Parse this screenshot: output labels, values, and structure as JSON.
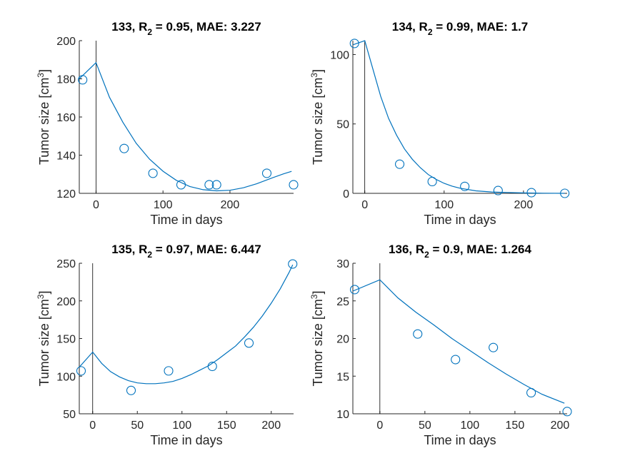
{
  "chart_data": [
    {
      "type": "scatter",
      "title_id": "133",
      "r2": "0.95",
      "mae": "3.227",
      "xlabel": "Time in days",
      "ylabel": "Tumor size [cm",
      "ylabel_sup": "3",
      "ylabel_end": "]",
      "xlim": [
        -25,
        295
      ],
      "ylim": [
        120,
        200
      ],
      "xticks": [
        0,
        100,
        200
      ],
      "yticks": [
        120,
        140,
        160,
        180,
        200
      ],
      "points": [
        [
          -20,
          179.5
        ],
        [
          42,
          143.5
        ],
        [
          85,
          130.5
        ],
        [
          127,
          124.5
        ],
        [
          169,
          124.5
        ],
        [
          180,
          124.5
        ],
        [
          255,
          130.5
        ],
        [
          295,
          124.5
        ]
      ],
      "fit": [
        [
          -25,
          180.0
        ],
        [
          0,
          188.5
        ],
        [
          20,
          170.4
        ],
        [
          40,
          157.3
        ],
        [
          60,
          146.2
        ],
        [
          80,
          137.9
        ],
        [
          100,
          131.6
        ],
        [
          120,
          126.8
        ],
        [
          140,
          123.6
        ],
        [
          160,
          121.9
        ],
        [
          180,
          121.3
        ],
        [
          200,
          121.6
        ],
        [
          220,
          122.9
        ],
        [
          240,
          125.0
        ],
        [
          260,
          127.7
        ],
        [
          280,
          130.2
        ],
        [
          292,
          131.5
        ]
      ]
    },
    {
      "type": "scatter",
      "title_id": "134",
      "r2": "0.99",
      "mae": "1.7",
      "xlabel": "Time in days",
      "ylabel": "Tumor size [cm",
      "ylabel_sup": "3",
      "ylabel_end": "]",
      "xlim": [
        -15,
        255
      ],
      "ylim": [
        0,
        110
      ],
      "xticks": [
        0,
        100,
        200
      ],
      "yticks": [
        0,
        50,
        100
      ],
      "points": [
        [
          -13,
          108
        ],
        [
          44,
          21
        ],
        [
          85,
          8.5
        ],
        [
          126,
          5
        ],
        [
          168,
          2
        ],
        [
          210,
          0.5
        ],
        [
          252,
          0
        ]
      ],
      "fit": [
        [
          -15,
          107
        ],
        [
          0,
          110
        ],
        [
          10,
          90
        ],
        [
          20,
          70
        ],
        [
          30,
          54
        ],
        [
          40,
          42
        ],
        [
          50,
          32
        ],
        [
          60,
          24.5
        ],
        [
          70,
          18.5
        ],
        [
          80,
          13.5
        ],
        [
          90,
          10
        ],
        [
          100,
          7.2
        ],
        [
          110,
          5.2
        ],
        [
          120,
          3.7
        ],
        [
          140,
          1.8
        ],
        [
          160,
          1
        ],
        [
          180,
          0.6
        ],
        [
          200,
          0.3
        ],
        [
          225,
          0.1
        ],
        [
          252,
          0
        ]
      ]
    },
    {
      "type": "scatter",
      "title_id": "135",
      "r2": "0.97",
      "mae": "6.447",
      "xlabel": "Time in days",
      "ylabel": "Tumor size [cm",
      "ylabel_sup": "3",
      "ylabel_end": "]",
      "xlim": [
        -15,
        225
      ],
      "ylim": [
        50,
        250
      ],
      "xticks": [
        0,
        50,
        100,
        150,
        200
      ],
      "yticks": [
        50,
        100,
        150,
        200,
        250
      ],
      "points": [
        [
          -13,
          107
        ],
        [
          43,
          81
        ],
        [
          85,
          107
        ],
        [
          134,
          113
        ],
        [
          175,
          144
        ],
        [
          224,
          249
        ]
      ],
      "fit": [
        [
          -15,
          112
        ],
        [
          0,
          132
        ],
        [
          10,
          117
        ],
        [
          20,
          106
        ],
        [
          30,
          99
        ],
        [
          40,
          94
        ],
        [
          50,
          91
        ],
        [
          60,
          90
        ],
        [
          70,
          90
        ],
        [
          80,
          91
        ],
        [
          90,
          93
        ],
        [
          100,
          97
        ],
        [
          110,
          102
        ],
        [
          120,
          108
        ],
        [
          130,
          114
        ],
        [
          140,
          122
        ],
        [
          150,
          131
        ],
        [
          160,
          140
        ],
        [
          170,
          152
        ],
        [
          180,
          165
        ],
        [
          190,
          180
        ],
        [
          200,
          197
        ],
        [
          210,
          216
        ],
        [
          220,
          238
        ],
        [
          224,
          248
        ]
      ]
    },
    {
      "type": "scatter",
      "title_id": "136",
      "r2": "0.9",
      "mae": "1.264",
      "xlabel": "Time in days",
      "ylabel": "Tumor size [cm",
      "ylabel_sup": "3",
      "ylabel_end": "]",
      "xlim": [
        -30,
        208
      ],
      "ylim": [
        10,
        30
      ],
      "xticks": [
        0,
        50,
        100,
        150,
        200
      ],
      "yticks": [
        10,
        15,
        20,
        25,
        30
      ],
      "points": [
        [
          -28,
          26.5
        ],
        [
          42,
          20.6
        ],
        [
          84,
          17.2
        ],
        [
          126,
          18.8
        ],
        [
          168,
          12.8
        ],
        [
          208,
          10.3
        ]
      ],
      "fit": [
        [
          -30,
          26.3
        ],
        [
          0,
          27.8
        ],
        [
          20,
          25.4
        ],
        [
          40,
          23.5
        ],
        [
          60,
          21.8
        ],
        [
          80,
          20.0
        ],
        [
          100,
          18.4
        ],
        [
          120,
          16.8
        ],
        [
          140,
          15.3
        ],
        [
          160,
          13.9
        ],
        [
          180,
          12.6
        ],
        [
          205,
          11.4
        ]
      ]
    }
  ]
}
